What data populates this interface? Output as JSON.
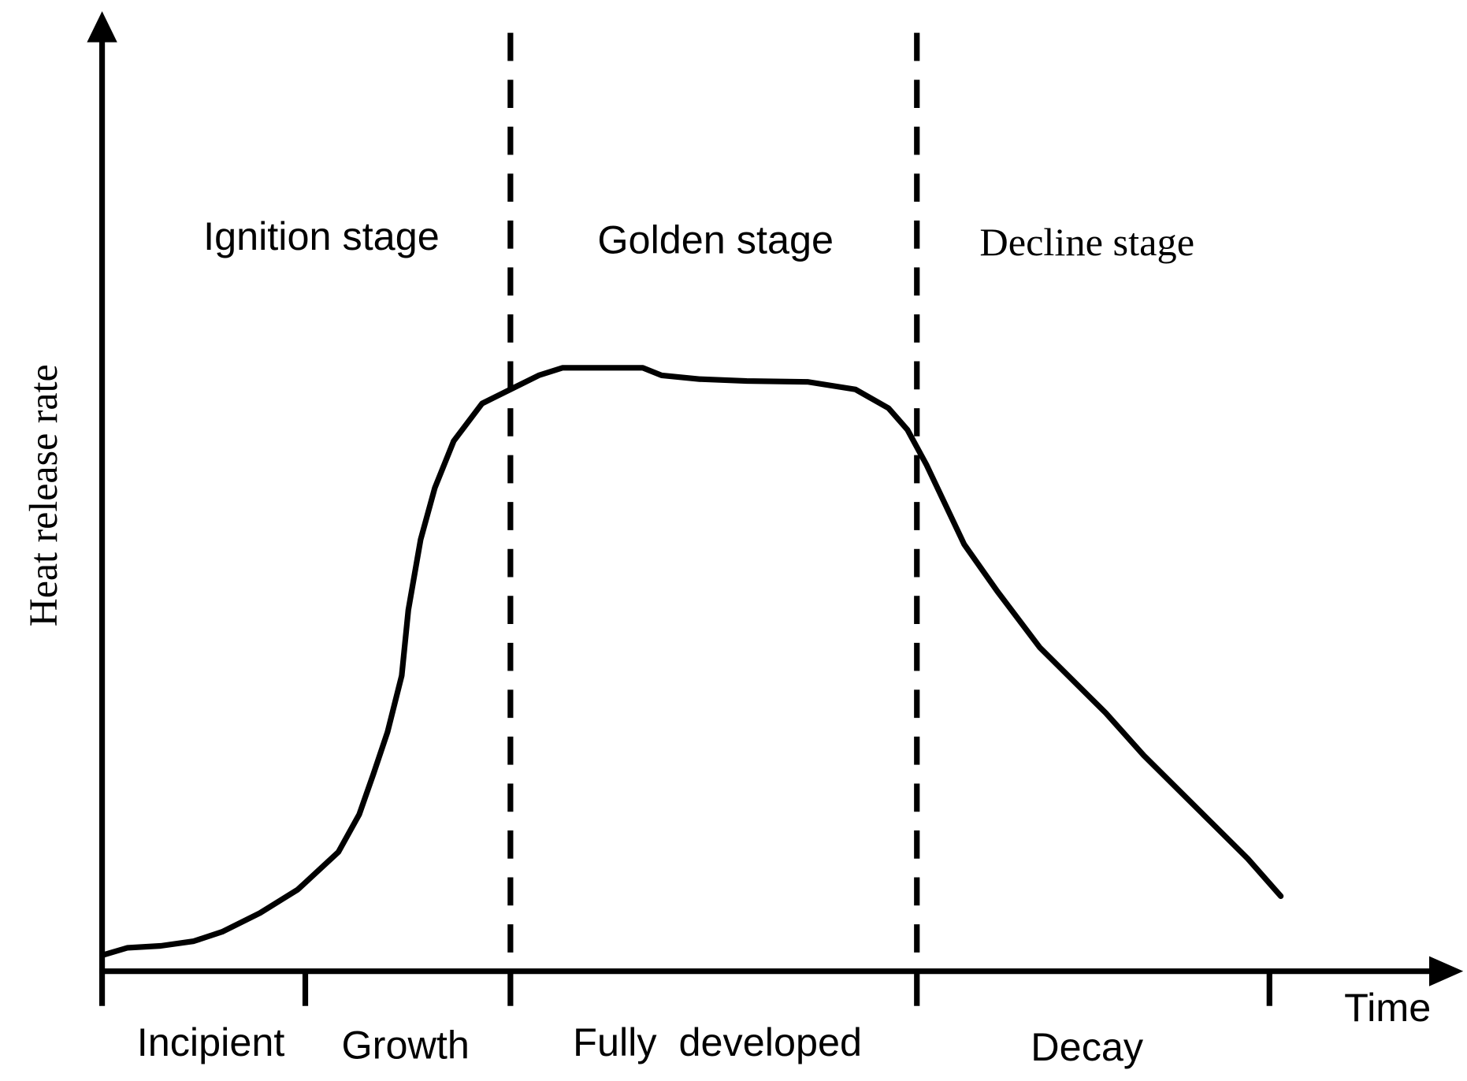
{
  "axes": {
    "y_label": "Heat release rate",
    "x_label": "Time"
  },
  "stages": [
    "Ignition stage",
    "Golden stage",
    "Decline stage"
  ],
  "phases": [
    "Incipient",
    "Growth",
    "Fully  developed",
    "Decay"
  ]
}
